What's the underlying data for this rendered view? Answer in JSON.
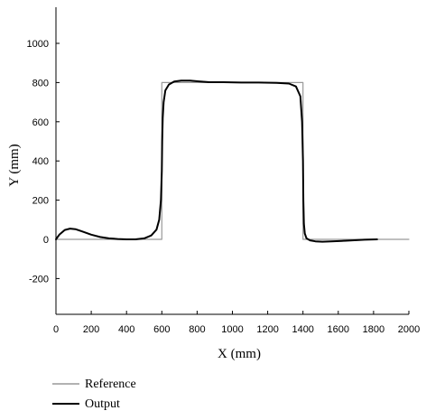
{
  "chart_data": {
    "type": "line",
    "title": "",
    "xlabel": "X (mm)",
    "ylabel": "Y (mm)",
    "xlim": [
      0,
      2000
    ],
    "ylim": [
      -400,
      1150
    ],
    "xticks": [
      0,
      200,
      400,
      600,
      800,
      1000,
      1200,
      1400,
      1600,
      1800,
      2000
    ],
    "yticks": [
      -200,
      0,
      200,
      400,
      600,
      800,
      1000
    ],
    "grid": false,
    "legend_position": "bottom-left",
    "series": [
      {
        "name": "Reference",
        "color": "#999999",
        "x": [
          0,
          600,
          600,
          1400,
          1400,
          2000
        ],
        "y": [
          0,
          0,
          800,
          800,
          0,
          0
        ]
      },
      {
        "name": "Output",
        "color": "#000000",
        "x": [
          0,
          20,
          50,
          80,
          110,
          150,
          200,
          250,
          300,
          350,
          400,
          450,
          500,
          540,
          570,
          585,
          595,
          600,
          602,
          605,
          610,
          620,
          640,
          670,
          710,
          760,
          810,
          870,
          950,
          1050,
          1150,
          1250,
          1320,
          1360,
          1385,
          1395,
          1400,
          1402,
          1405,
          1410,
          1420,
          1440,
          1470,
          1510,
          1560,
          1620,
          1680,
          1750,
          1820
        ],
        "y": [
          0,
          25,
          48,
          55,
          52,
          40,
          24,
          12,
          5,
          2,
          0,
          0,
          5,
          20,
          50,
          100,
          200,
          350,
          500,
          620,
          700,
          760,
          790,
          805,
          810,
          810,
          806,
          802,
          802,
          800,
          800,
          798,
          795,
          780,
          730,
          600,
          400,
          200,
          80,
          30,
          5,
          -5,
          -10,
          -12,
          -10,
          -8,
          -5,
          -2,
          0
        ]
      }
    ]
  }
}
